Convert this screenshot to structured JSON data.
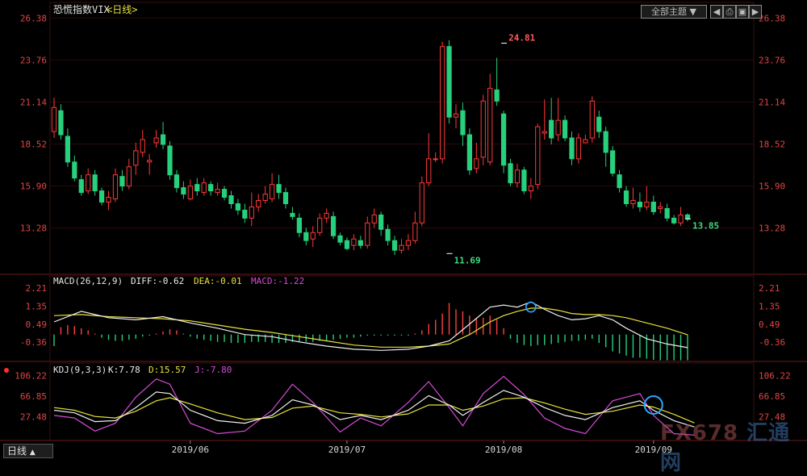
{
  "toolbar": {
    "theme_select": "全部主题",
    "theme_arrow": "▼",
    "btn_prev": "◀",
    "btn_print": "⎙",
    "btn_save": "▣",
    "btn_next": "▶"
  },
  "bottom_tab": {
    "label": "日线",
    "arrow": "▲"
  },
  "watermark": {
    "text": "FX678",
    "cn": "汇通网"
  },
  "chart_data": [
    {
      "type": "candlestick",
      "title": "恐慌指数VIX",
      "period": "<日线>",
      "y_ticks": [
        "26.38",
        "23.76",
        "21.14",
        "18.52",
        "15.90",
        "13.28"
      ],
      "ylim": [
        10.9,
        26.9
      ],
      "x_ticks": [
        {
          "label": "2019/06",
          "index": 20
        },
        {
          "label": "2019/07",
          "index": 43
        },
        {
          "label": "2019/08",
          "index": 66
        },
        {
          "label": "2019/09",
          "index": 88
        }
      ],
      "annotations": [
        {
          "text": "24.81",
          "index": 66,
          "value": 24.81
        },
        {
          "text": "11.69",
          "index": 58,
          "value": 11.69
        },
        {
          "text": "13.85",
          "index": 93,
          "value": 13.85
        }
      ],
      "colors": {
        "up": "#ff3838",
        "down": "#26d07c",
        "axis_text": "#e04545"
      },
      "candles": [
        [
          19.3,
          20.8,
          21.4,
          18.9
        ],
        [
          20.6,
          19.1,
          21.0,
          18.8
        ],
        [
          19.0,
          17.4,
          19.5,
          17.1
        ],
        [
          17.4,
          16.4,
          17.8,
          16.2
        ],
        [
          16.3,
          15.5,
          16.6,
          15.3
        ],
        [
          15.6,
          16.6,
          17.0,
          15.4
        ],
        [
          16.6,
          15.6,
          16.9,
          15.3
        ],
        [
          15.6,
          14.9,
          15.8,
          14.7
        ],
        [
          14.9,
          15.2,
          15.6,
          14.4
        ],
        [
          15.1,
          16.6,
          17.0,
          14.9
        ],
        [
          16.5,
          15.9,
          16.9,
          15.6
        ],
        [
          15.9,
          17.1,
          17.6,
          15.7
        ],
        [
          17.2,
          18.1,
          18.6,
          16.6
        ],
        [
          18.0,
          18.8,
          19.4,
          17.7
        ],
        [
          17.4,
          17.5,
          17.9,
          16.6
        ],
        [
          18.6,
          18.9,
          19.4,
          18.3
        ],
        [
          19.1,
          18.5,
          19.9,
          18.2
        ],
        [
          18.4,
          16.6,
          18.7,
          16.3
        ],
        [
          16.6,
          15.8,
          16.9,
          15.5
        ],
        [
          15.8,
          15.4,
          16.2,
          15.1
        ],
        [
          15.1,
          15.9,
          16.3,
          15.0
        ],
        [
          16.0,
          15.6,
          16.4,
          15.3
        ],
        [
          15.5,
          16.1,
          16.4,
          15.3
        ],
        [
          16.0,
          15.6,
          16.2,
          15.3
        ],
        [
          15.5,
          15.7,
          16.1,
          15.3
        ],
        [
          15.7,
          15.2,
          15.9,
          15.0
        ],
        [
          15.3,
          14.8,
          15.6,
          14.5
        ],
        [
          14.8,
          14.4,
          15.1,
          14.1
        ],
        [
          14.4,
          13.9,
          14.8,
          13.6
        ],
        [
          13.9,
          14.6,
          15.5,
          13.4
        ],
        [
          14.6,
          15.0,
          15.4,
          14.3
        ],
        [
          15.0,
          15.4,
          15.9,
          14.8
        ],
        [
          15.1,
          16.0,
          16.7,
          14.9
        ],
        [
          16.0,
          15.5,
          16.6,
          15.1
        ],
        [
          15.5,
          14.8,
          15.8,
          14.5
        ],
        [
          14.2,
          14.0,
          14.6,
          13.8
        ],
        [
          13.9,
          13.0,
          14.2,
          12.7
        ],
        [
          13.0,
          12.5,
          13.3,
          12.2
        ],
        [
          12.6,
          13.0,
          13.4,
          12.1
        ],
        [
          13.0,
          13.9,
          14.2,
          12.8
        ],
        [
          13.9,
          14.2,
          14.5,
          13.6
        ],
        [
          14.0,
          12.8,
          14.3,
          12.6
        ],
        [
          12.8,
          12.4,
          13.0,
          12.2
        ],
        [
          12.5,
          12.0,
          12.7,
          11.9
        ],
        [
          12.2,
          12.6,
          12.9,
          11.9
        ],
        [
          12.5,
          12.2,
          12.8,
          12.0
        ],
        [
          12.2,
          13.6,
          14.0,
          12.0
        ],
        [
          13.6,
          14.1,
          14.5,
          13.3
        ],
        [
          14.1,
          13.2,
          14.3,
          12.8
        ],
        [
          13.2,
          12.5,
          13.5,
          12.2
        ],
        [
          12.5,
          11.9,
          12.8,
          11.6
        ],
        [
          11.9,
          12.2,
          12.6,
          11.7
        ],
        [
          12.2,
          12.5,
          12.9,
          11.9
        ],
        [
          12.5,
          13.6,
          14.3,
          12.3
        ],
        [
          13.6,
          16.1,
          16.5,
          13.4
        ],
        [
          16.1,
          17.6,
          19.2,
          15.9
        ],
        [
          17.6,
          17.6,
          18.0,
          17.4
        ],
        [
          17.6,
          24.6,
          24.9,
          17.3
        ],
        [
          24.6,
          20.2,
          25.0,
          19.8
        ],
        [
          20.2,
          20.4,
          21.0,
          19.5
        ],
        [
          20.6,
          19.1,
          21.1,
          18.4
        ],
        [
          19.1,
          16.9,
          19.5,
          16.6
        ],
        [
          17.0,
          17.6,
          18.6,
          16.7
        ],
        [
          17.7,
          21.2,
          21.6,
          17.2
        ],
        [
          17.4,
          22.0,
          22.9,
          17.2
        ],
        [
          21.9,
          21.2,
          23.9,
          20.9
        ],
        [
          20.4,
          17.2,
          20.6,
          16.7
        ],
        [
          17.3,
          16.1,
          17.6,
          15.9
        ],
        [
          16.1,
          16.9,
          17.3,
          15.8
        ],
        [
          16.9,
          15.6,
          17.1,
          15.4
        ],
        [
          15.6,
          15.9,
          16.4,
          15.1
        ],
        [
          16.0,
          19.6,
          19.8,
          15.7
        ],
        [
          19.2,
          19.3,
          21.3,
          18.8
        ],
        [
          20.0,
          18.9,
          21.4,
          18.5
        ],
        [
          19.1,
          20.0,
          21.4,
          18.7
        ],
        [
          20.0,
          18.9,
          20.3,
          18.7
        ],
        [
          18.9,
          17.6,
          19.3,
          17.2
        ],
        [
          17.6,
          18.9,
          19.2,
          17.3
        ],
        [
          18.6,
          18.8,
          19.1,
          18.6
        ],
        [
          18.9,
          21.2,
          21.5,
          18.6
        ],
        [
          20.2,
          19.3,
          20.6,
          18.9
        ],
        [
          19.3,
          18.0,
          19.6,
          17.1
        ],
        [
          18.1,
          16.7,
          18.4,
          16.5
        ],
        [
          16.6,
          15.8,
          16.9,
          15.5
        ],
        [
          15.6,
          14.8,
          15.9,
          14.6
        ],
        [
          14.8,
          15.0,
          15.8,
          14.5
        ],
        [
          14.9,
          14.6,
          15.5,
          14.3
        ],
        [
          14.6,
          14.9,
          15.9,
          14.4
        ],
        [
          14.9,
          14.3,
          15.3,
          14.1
        ],
        [
          14.5,
          14.6,
          14.9,
          14.2
        ],
        [
          14.5,
          13.9,
          14.8,
          13.7
        ],
        [
          13.9,
          13.6,
          14.1,
          13.5
        ],
        [
          13.6,
          14.1,
          14.6,
          13.4
        ],
        [
          14.1,
          13.85,
          14.2,
          13.7
        ]
      ]
    },
    {
      "type": "line",
      "title": "MACD(26,12,9)",
      "legend": [
        {
          "label": "DIFF:-0.62",
          "color": "#eeeeee"
        },
        {
          "label": "DEA:-0.01",
          "color": "#e8e23c"
        },
        {
          "label": "MACD:-1.22",
          "color": "#d64cd6"
        }
      ],
      "y_ticks": [
        "2.21",
        "1.35",
        "0.49",
        "-0.36"
      ],
      "ylim": [
        -1.2,
        2.4
      ],
      "diff": [
        [
          0,
          0.6
        ],
        [
          4,
          1.1
        ],
        [
          8,
          0.8
        ],
        [
          12,
          0.7
        ],
        [
          16,
          0.85
        ],
        [
          20,
          0.55
        ],
        [
          24,
          0.3
        ],
        [
          28,
          0.0
        ],
        [
          32,
          -0.1
        ],
        [
          36,
          -0.35
        ],
        [
          40,
          -0.55
        ],
        [
          44,
          -0.7
        ],
        [
          48,
          -0.75
        ],
        [
          52,
          -0.7
        ],
        [
          55,
          -0.55
        ],
        [
          58,
          -0.3
        ],
        [
          61,
          0.5
        ],
        [
          64,
          1.3
        ],
        [
          66,
          1.4
        ],
        [
          68,
          1.3
        ],
        [
          70,
          1.55
        ],
        [
          72,
          1.2
        ],
        [
          74,
          0.9
        ],
        [
          76,
          0.7
        ],
        [
          78,
          0.75
        ],
        [
          80,
          0.9
        ],
        [
          82,
          0.7
        ],
        [
          84,
          0.3
        ],
        [
          87,
          -0.2
        ],
        [
          90,
          -0.45
        ],
        [
          93,
          -0.62
        ]
      ],
      "dea": [
        [
          0,
          0.9
        ],
        [
          4,
          0.95
        ],
        [
          8,
          0.85
        ],
        [
          12,
          0.8
        ],
        [
          16,
          0.75
        ],
        [
          20,
          0.65
        ],
        [
          24,
          0.45
        ],
        [
          28,
          0.25
        ],
        [
          32,
          0.1
        ],
        [
          36,
          -0.1
        ],
        [
          40,
          -0.3
        ],
        [
          44,
          -0.5
        ],
        [
          48,
          -0.6
        ],
        [
          52,
          -0.6
        ],
        [
          55,
          -0.55
        ],
        [
          58,
          -0.45
        ],
        [
          61,
          0.0
        ],
        [
          64,
          0.6
        ],
        [
          66,
          0.9
        ],
        [
          68,
          1.1
        ],
        [
          70,
          1.25
        ],
        [
          72,
          1.25
        ],
        [
          74,
          1.15
        ],
        [
          76,
          1.0
        ],
        [
          78,
          0.95
        ],
        [
          80,
          0.95
        ],
        [
          82,
          0.9
        ],
        [
          84,
          0.8
        ],
        [
          87,
          0.55
        ],
        [
          90,
          0.3
        ],
        [
          93,
          -0.01
        ]
      ],
      "macd_bars": [
        -0.55,
        0.35,
        0.45,
        0.4,
        0.3,
        0.2,
        0.05,
        -0.15,
        -0.25,
        -0.3,
        -0.3,
        -0.25,
        -0.2,
        -0.1,
        -0.05,
        0.05,
        0.15,
        0.25,
        0.2,
        0.05,
        -0.1,
        -0.2,
        -0.25,
        -0.3,
        -0.35,
        -0.35,
        -0.4,
        -0.4,
        -0.4,
        -0.35,
        -0.35,
        -0.35,
        -0.4,
        -0.4,
        -0.4,
        -0.35,
        -0.35,
        -0.35,
        -0.35,
        -0.3,
        -0.3,
        -0.25,
        -0.2,
        -0.15,
        -0.15,
        -0.1,
        -0.05,
        -0.05,
        -0.05,
        -0.05,
        -0.05,
        -0.05,
        -0.05,
        0.05,
        0.2,
        0.5,
        0.7,
        1.0,
        1.5,
        1.2,
        1.1,
        0.9,
        0.8,
        0.8,
        0.9,
        0.7,
        0.3,
        -0.2,
        -0.4,
        -0.5,
        -0.55,
        -0.5,
        -0.5,
        -0.45,
        -0.4,
        -0.35,
        -0.3,
        -0.3,
        -0.25,
        -0.2,
        -0.4,
        -0.6,
        -0.8,
        -0.9,
        -1.0,
        -1.1,
        -1.1,
        -1.15,
        -1.2,
        -1.22,
        -1.22,
        -1.22,
        -1.22,
        -1.22
      ]
    },
    {
      "type": "line",
      "title": "KDJ(9,3,3)",
      "legend": [
        {
          "label": "K:7.78",
          "color": "#eeeeee"
        },
        {
          "label": "D:15.57",
          "color": "#e8e23c"
        },
        {
          "label": "J:-7.80",
          "color": "#d64cd6"
        }
      ],
      "y_ticks": [
        "106.22",
        "66.85",
        "27.48"
      ],
      "ylim": [
        -12,
        112
      ],
      "k": [
        [
          0,
          40
        ],
        [
          3,
          35
        ],
        [
          6,
          18
        ],
        [
          9,
          20
        ],
        [
          12,
          45
        ],
        [
          15,
          75
        ],
        [
          17,
          72
        ],
        [
          20,
          40
        ],
        [
          24,
          20
        ],
        [
          28,
          15
        ],
        [
          32,
          30
        ],
        [
          35,
          60
        ],
        [
          38,
          50
        ],
        [
          42,
          22
        ],
        [
          45,
          30
        ],
        [
          48,
          22
        ],
        [
          52,
          40
        ],
        [
          55,
          68
        ],
        [
          58,
          50
        ],
        [
          60,
          30
        ],
        [
          63,
          55
        ],
        [
          66,
          78
        ],
        [
          69,
          65
        ],
        [
          72,
          45
        ],
        [
          75,
          30
        ],
        [
          78,
          22
        ],
        [
          82,
          45
        ],
        [
          86,
          58
        ],
        [
          88,
          40
        ],
        [
          91,
          20
        ],
        [
          94,
          7.78
        ]
      ],
      "d": [
        [
          0,
          45
        ],
        [
          3,
          40
        ],
        [
          6,
          28
        ],
        [
          9,
          25
        ],
        [
          12,
          38
        ],
        [
          15,
          58
        ],
        [
          17,
          64
        ],
        [
          20,
          52
        ],
        [
          24,
          35
        ],
        [
          28,
          22
        ],
        [
          32,
          26
        ],
        [
          35,
          44
        ],
        [
          38,
          48
        ],
        [
          42,
          35
        ],
        [
          45,
          32
        ],
        [
          48,
          27
        ],
        [
          52,
          33
        ],
        [
          55,
          50
        ],
        [
          58,
          50
        ],
        [
          60,
          40
        ],
        [
          63,
          48
        ],
        [
          66,
          62
        ],
        [
          69,
          64
        ],
        [
          72,
          54
        ],
        [
          75,
          42
        ],
        [
          78,
          32
        ],
        [
          82,
          38
        ],
        [
          86,
          50
        ],
        [
          88,
          46
        ],
        [
          91,
          32
        ],
        [
          94,
          15.57
        ]
      ],
      "j": [
        [
          0,
          30
        ],
        [
          3,
          25
        ],
        [
          6,
          0
        ],
        [
          9,
          15
        ],
        [
          12,
          65
        ],
        [
          15,
          100
        ],
        [
          17,
          90
        ],
        [
          20,
          15
        ],
        [
          24,
          -5
        ],
        [
          28,
          0
        ],
        [
          32,
          40
        ],
        [
          35,
          90
        ],
        [
          38,
          55
        ],
        [
          42,
          -2
        ],
        [
          45,
          25
        ],
        [
          48,
          10
        ],
        [
          52,
          55
        ],
        [
          55,
          95
        ],
        [
          58,
          45
        ],
        [
          60,
          10
        ],
        [
          63,
          72
        ],
        [
          66,
          105
        ],
        [
          69,
          70
        ],
        [
          72,
          25
        ],
        [
          75,
          5
        ],
        [
          78,
          -5
        ],
        [
          82,
          58
        ],
        [
          86,
          72
        ],
        [
          88,
          30
        ],
        [
          91,
          -5
        ],
        [
          94,
          -7.8
        ]
      ]
    }
  ]
}
